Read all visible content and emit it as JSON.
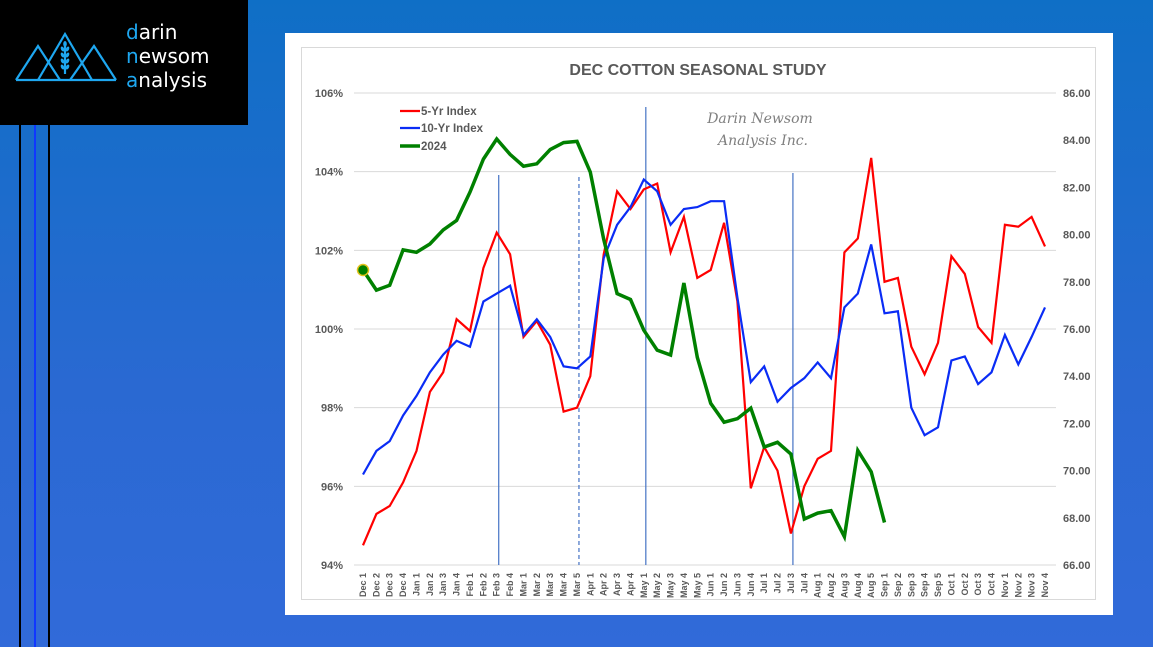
{
  "logo": {
    "icon": "mountain-wheat-icon",
    "lines": [
      {
        "first": "d",
        "rest": "arin"
      },
      {
        "first": "n",
        "mid": "ew",
        "rest": "som"
      },
      {
        "first": "a",
        "rest": "nalysis"
      }
    ],
    "accent_color": "#1ea7f0"
  },
  "chart_data": {
    "type": "line",
    "title": "DEC COTTON SEASONAL STUDY",
    "watermark": [
      "Darin Newsom",
      "Analysis Inc."
    ],
    "xlabel": "",
    "ylabel": "",
    "legend": {
      "placement": "top-left",
      "entries": [
        "5-Yr Index",
        "10-Yr Index",
        "2024"
      ]
    },
    "grid": true,
    "categories": [
      "Dec 1",
      "Dec 2",
      "Dec 3",
      "Dec 4",
      "Jan 1",
      "Jan 2",
      "Jan 3",
      "Jan 4",
      "Feb 1",
      "Feb 2",
      "Feb 3",
      "Feb 4",
      "Mar 1",
      "Mar 2",
      "Mar 3",
      "Mar 4",
      "Mar 5",
      "Apr 1",
      "Apr 2",
      "Apr 3",
      "Apr 4",
      "May 1",
      "May 2",
      "May 3",
      "May 4",
      "May 5",
      "Jun 1",
      "Jun 2",
      "Jun 3",
      "Jun 4",
      "Jul 1",
      "Jul 2",
      "Jul 3",
      "Jul 4",
      "Aug 1",
      "Aug 2",
      "Aug 3",
      "Aug 4",
      "Aug 5",
      "Sep 1",
      "Sep 2",
      "Sep 3",
      "Sep 4",
      "Sep 5",
      "Oct 1",
      "Oct 2",
      "Oct 3",
      "Oct 4",
      "Nov 1",
      "Nov 2",
      "Nov 3",
      "Nov 4"
    ],
    "y_left": {
      "min": 94,
      "max": 106,
      "step": 2,
      "tick_labels": [
        "106%",
        "104%",
        "102%",
        "100%",
        "98%",
        "96%",
        "94%"
      ]
    },
    "y_right": {
      "min": 66,
      "max": 86,
      "step": 2,
      "tick_labels": [
        "86.00",
        "84.00",
        "82.00",
        "80.00",
        "78.00",
        "76.00",
        "74.00",
        "72.00",
        "70.00",
        "68.00",
        "66.00"
      ]
    },
    "series": [
      {
        "name": "5-Yr Index",
        "axis": "left",
        "color": "#ff0000",
        "values": [
          94.5,
          95.3,
          95.5,
          96.1,
          96.9,
          98.4,
          98.9,
          100.25,
          99.95,
          101.55,
          102.45,
          101.9,
          99.8,
          100.2,
          99.6,
          97.9,
          98.0,
          98.8,
          101.9,
          103.5,
          103.05,
          103.55,
          103.7,
          101.95,
          102.85,
          101.3,
          101.5,
          102.7,
          100.7,
          95.95,
          97.0,
          96.4,
          94.8,
          96.0,
          96.7,
          96.9,
          101.95,
          102.3,
          104.35,
          101.2,
          101.3,
          99.55,
          98.85,
          99.65,
          101.85,
          101.4,
          100.05,
          99.65,
          102.65,
          102.6,
          102.85,
          102.1
        ]
      },
      {
        "name": "10-Yr Index",
        "axis": "left",
        "color": "#0a2cf5",
        "values": [
          96.3,
          96.9,
          97.15,
          97.8,
          98.3,
          98.9,
          99.35,
          99.7,
          99.55,
          100.7,
          100.9,
          101.1,
          99.85,
          100.25,
          99.8,
          99.05,
          99.0,
          99.3,
          101.8,
          102.65,
          103.1,
          103.8,
          103.5,
          102.65,
          103.05,
          103.1,
          103.25,
          103.25,
          100.8,
          98.65,
          99.05,
          98.15,
          98.5,
          98.75,
          99.15,
          98.75,
          100.55,
          100.9,
          102.15,
          100.4,
          100.45,
          98.0,
          97.3,
          97.5,
          99.2,
          99.3,
          98.6,
          98.9,
          99.85,
          99.1,
          99.8,
          100.55
        ]
      },
      {
        "name": "2024",
        "axis": "right",
        "color": "#008000",
        "values": [
          78.5,
          77.65,
          77.85,
          79.35,
          79.25,
          79.6,
          80.2,
          80.6,
          81.8,
          83.2,
          84.05,
          83.4,
          82.9,
          83.0,
          83.6,
          83.9,
          83.95,
          82.65,
          79.8,
          77.5,
          77.25,
          75.95,
          75.1,
          74.9,
          77.95,
          74.8,
          72.85,
          72.05,
          72.2,
          72.65,
          71.0,
          71.2,
          70.7,
          67.95,
          68.2,
          68.3,
          67.2,
          70.85,
          69.95,
          67.8,
          null,
          null,
          null,
          null,
          null,
          null,
          null,
          null,
          null,
          null,
          null,
          null
        ],
        "start_marker": {
          "category": "Dec 1",
          "value": 78.5
        }
      }
    ],
    "reference_lines": [
      {
        "category": "Feb 3",
        "style": "solid"
      },
      {
        "category": "Mar 5",
        "style": "dashed"
      },
      {
        "category": "May 1",
        "style": "solid"
      },
      {
        "category": "Jul 3",
        "style": "solid"
      }
    ]
  }
}
